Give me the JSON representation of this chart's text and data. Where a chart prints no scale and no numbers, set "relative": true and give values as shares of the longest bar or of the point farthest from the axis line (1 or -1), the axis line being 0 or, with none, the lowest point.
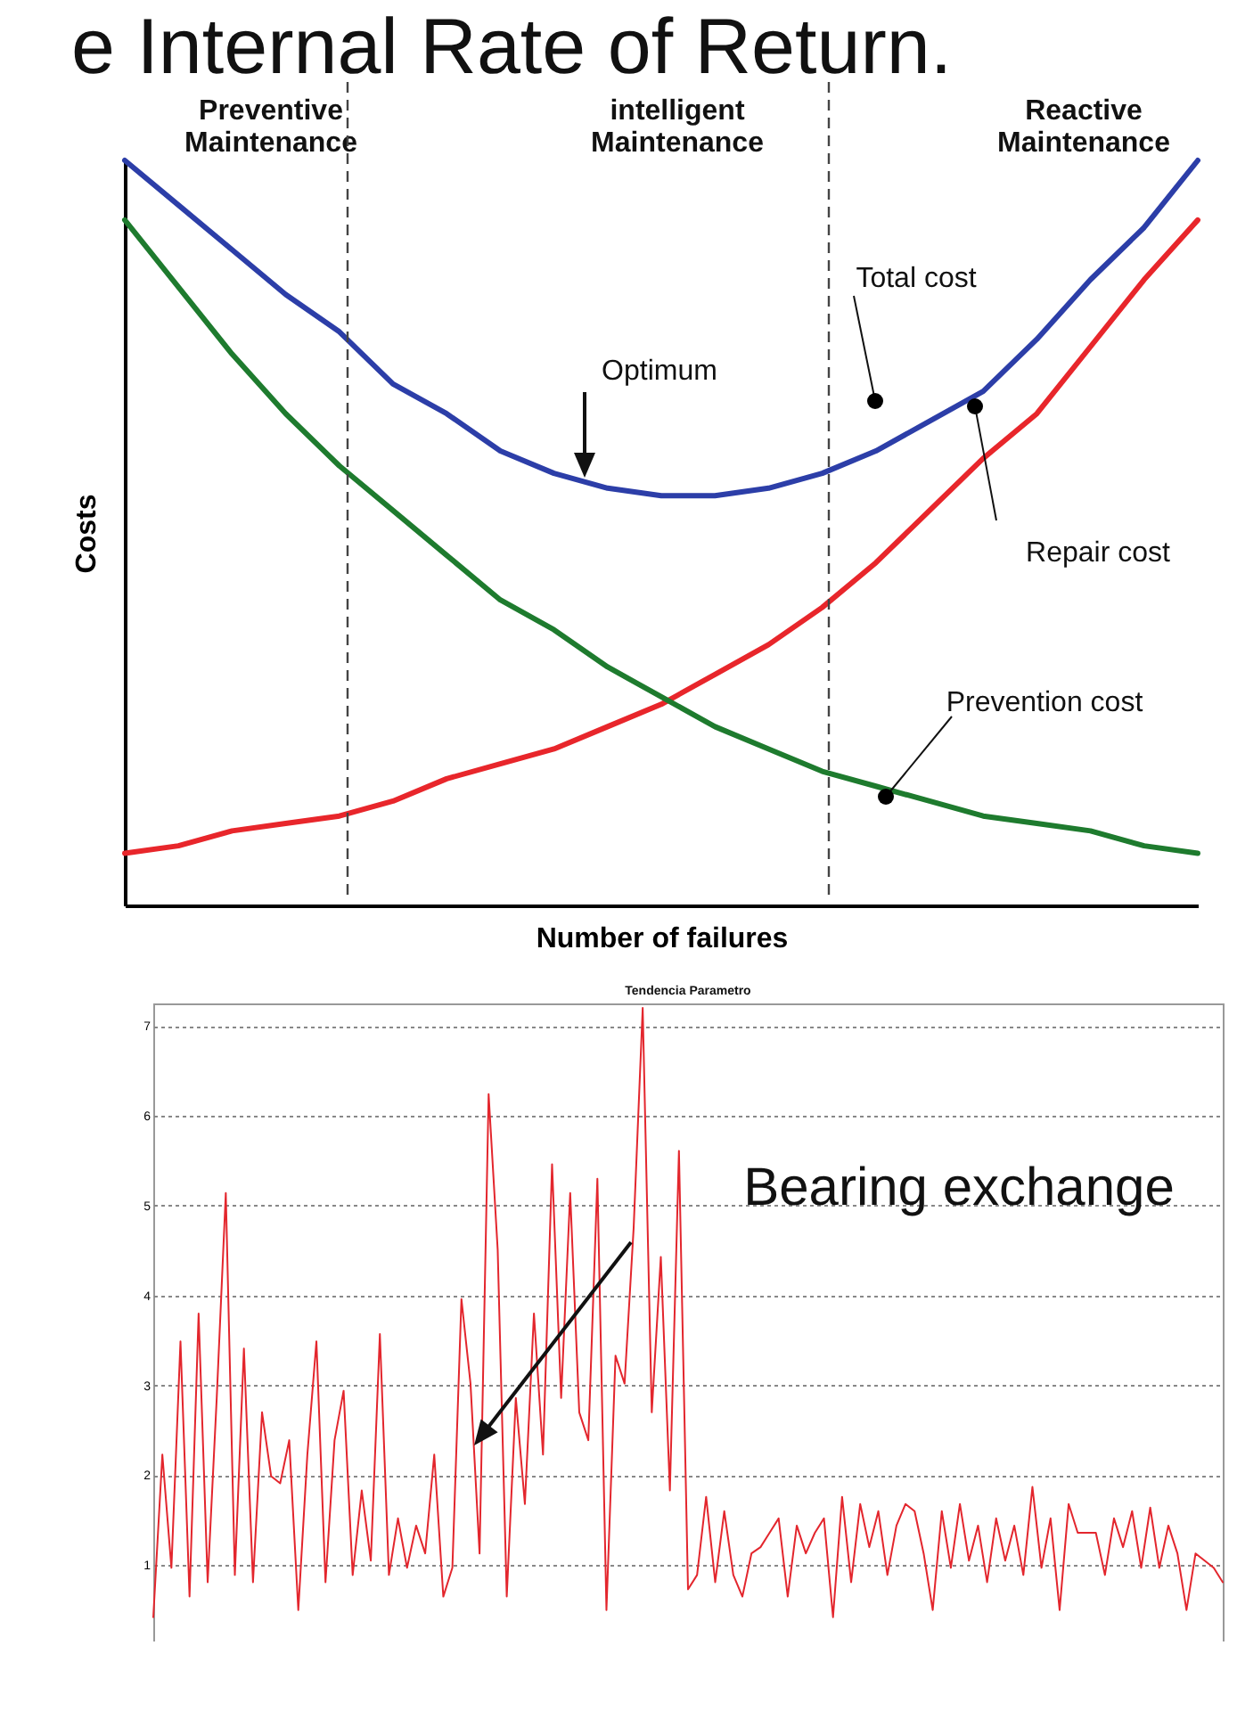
{
  "chart_data": [
    {
      "type": "line",
      "title": "e Internal Rate of Return.",
      "xlabel": "Number of failures",
      "ylabel": "Costs",
      "relative": true,
      "categories": [
        null,
        null,
        null,
        null,
        null,
        null,
        null,
        null,
        null,
        null,
        null,
        null,
        null,
        null,
        null,
        null,
        null,
        null,
        null,
        null,
        null
      ],
      "series": [
        {
          "color": "#2c3ea8",
          "values": [
            1.0,
            0.94,
            0.88,
            0.82,
            0.77,
            0.7,
            0.66,
            0.61,
            0.58,
            0.56,
            0.55,
            0.55,
            0.56,
            0.58,
            0.61,
            0.65,
            0.69,
            0.76,
            0.84,
            0.91,
            1.0
          ]
        },
        {
          "color": "#e8262b",
          "values": [
            0.07,
            0.08,
            0.1,
            0.11,
            0.12,
            0.14,
            0.17,
            0.19,
            0.21,
            0.24,
            0.27,
            0.31,
            0.35,
            0.4,
            0.46,
            0.53,
            0.6,
            0.66,
            0.75,
            0.84,
            0.92
          ]
        },
        {
          "color": "#1e7b2e",
          "values": [
            0.92,
            0.83,
            0.74,
            0.66,
            0.59,
            0.53,
            0.47,
            0.41,
            0.37,
            0.32,
            0.28,
            0.24,
            0.21,
            0.18,
            0.16,
            0.14,
            0.12,
            0.11,
            0.1,
            0.08,
            0.07
          ]
        }
      ],
      "annotations": [
        "Preventive Maintenance",
        "intelligent Maintenance",
        "Reactive Maintenance",
        "Optimum",
        "Total cost",
        "Repair cost",
        "Prevention cost"
      ]
    },
    {
      "type": "line",
      "title": "Tendencia Parametro",
      "color": "#e3262d",
      "ylim": [
        0.15,
        7.25
      ],
      "yticks": [
        1,
        2,
        3,
        4,
        5,
        6,
        7
      ],
      "grid": "y",
      "tick_labels": "y",
      "categories": [
        null,
        null,
        null,
        null,
        null,
        null,
        null,
        null,
        null,
        null,
        null,
        null,
        null,
        null,
        null,
        null,
        null,
        null,
        null,
        null,
        null,
        null,
        null,
        null,
        null,
        null,
        null,
        null,
        null,
        null,
        null,
        null,
        null,
        null,
        null,
        null,
        null,
        null,
        null,
        null,
        null,
        null,
        null,
        null,
        null,
        null,
        null,
        null,
        null,
        null,
        null,
        null,
        null,
        null,
        null,
        null,
        null,
        null,
        null,
        null,
        null,
        null,
        null,
        null,
        null,
        null,
        null,
        null,
        null,
        null,
        null,
        null,
        null,
        null,
        null,
        null,
        null,
        null,
        null,
        null,
        null,
        null,
        null,
        null,
        null,
        null,
        null,
        null,
        null,
        null,
        null,
        null,
        null,
        null,
        null,
        null,
        null,
        null,
        null,
        null,
        null,
        null,
        null,
        null,
        null,
        null,
        null,
        null,
        null,
        null,
        null,
        null,
        null,
        null,
        null,
        null,
        null,
        null,
        null
      ],
      "values": [
        0.42,
        2.23,
        0.97,
        3.49,
        0.65,
        3.8,
        0.81,
        2.86,
        5.14,
        0.89,
        3.41,
        0.81,
        2.7,
        1.99,
        1.91,
        2.39,
        0.5,
        2.23,
        3.49,
        0.81,
        2.39,
        2.94,
        0.89,
        1.83,
        1.05,
        3.57,
        0.89,
        1.52,
        0.97,
        1.44,
        1.13,
        2.23,
        0.65,
        0.97,
        3.96,
        3.02,
        1.13,
        6.24,
        4.51,
        0.65,
        2.86,
        1.68,
        3.8,
        2.23,
        5.46,
        2.86,
        5.14,
        2.7,
        2.39,
        5.3,
        0.5,
        3.33,
        3.02,
        4.75,
        7.2,
        2.7,
        4.43,
        1.83,
        5.61,
        0.73,
        0.89,
        1.76,
        0.81,
        1.6,
        0.89,
        0.65,
        1.13,
        1.2,
        1.36,
        1.52,
        0.65,
        1.44,
        1.13,
        1.36,
        1.52,
        0.42,
        1.76,
        0.81,
        1.68,
        1.2,
        1.6,
        0.89,
        1.44,
        1.68,
        1.6,
        1.13,
        0.5,
        1.6,
        0.97,
        1.68,
        1.05,
        1.44,
        0.81,
        1.52,
        1.05,
        1.44,
        0.89,
        1.87,
        0.97,
        1.52,
        0.5,
        1.68,
        1.36,
        1.36,
        1.36,
        0.89,
        1.52,
        1.2,
        1.6,
        0.97,
        1.64,
        0.97,
        1.44,
        1.13,
        0.5,
        1.13,
        1.05,
        0.97,
        0.81
      ],
      "annotations": [
        "Bearing exchange"
      ]
    }
  ]
}
